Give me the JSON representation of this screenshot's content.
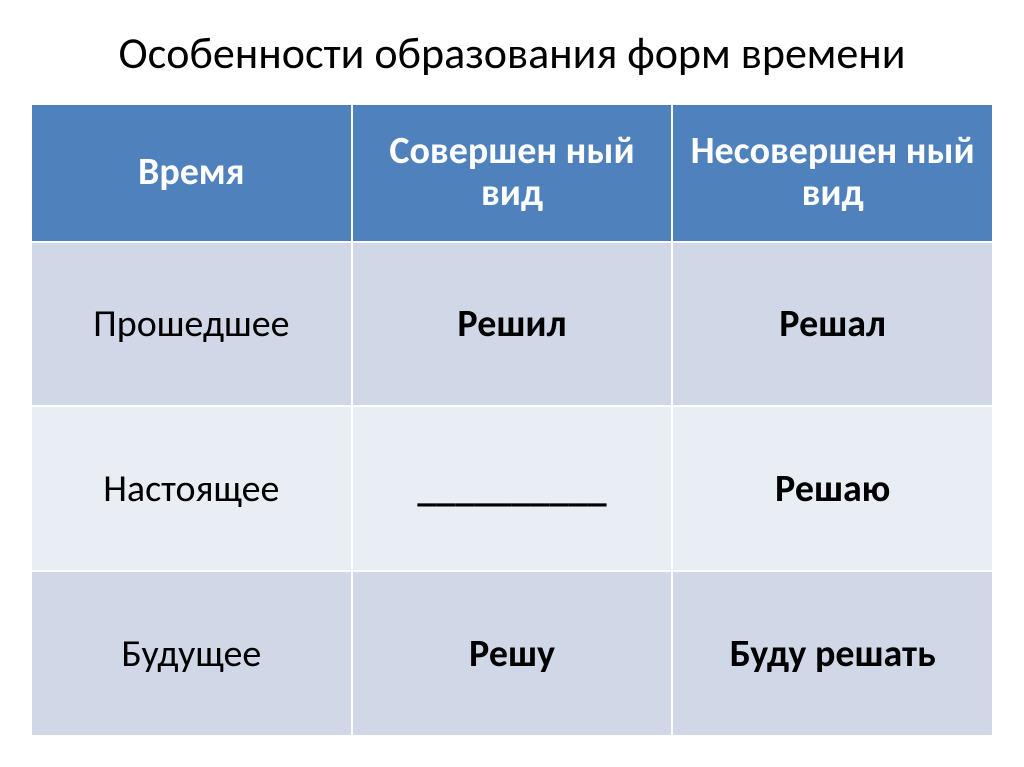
{
  "title": "Особенности образования форм времени",
  "table": {
    "columns": [
      "Время",
      "Совершен ный вид",
      "Несовершен ный вид"
    ],
    "column_widths": [
      "33.3%",
      "33.3%",
      "33.4%"
    ],
    "rows": [
      [
        "Прошедшее",
        "Решил",
        "Решал"
      ],
      [
        "Настоящее",
        "__________",
        "Решаю"
      ],
      [
        "Будущее",
        "Решу",
        "Буду решать"
      ]
    ],
    "header_bg": "#4f81bd",
    "header_fg": "#ffffff",
    "row_odd_bg": "#d0d8e8",
    "row_even_bg": "#e9edf4",
    "border_color": "#ffffff",
    "title_fontsize": 44,
    "cell_fontsize": 38
  }
}
